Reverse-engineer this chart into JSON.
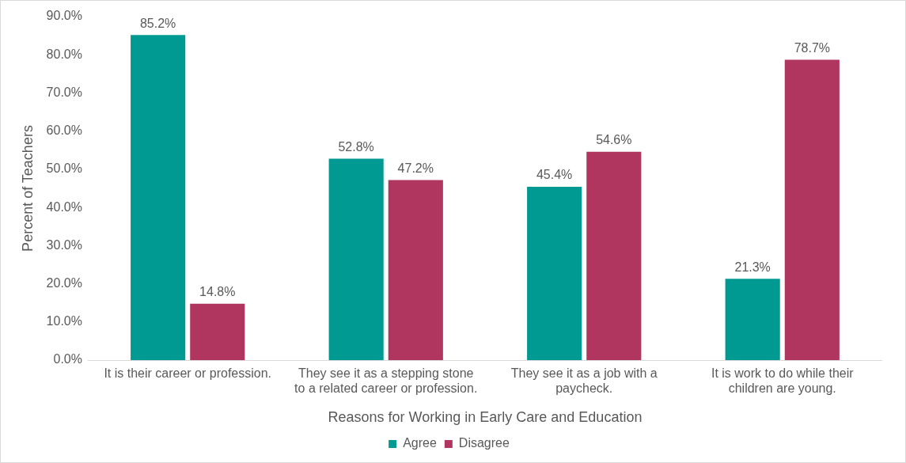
{
  "chart_data": {
    "type": "bar",
    "xlabel": "Reasons for Working in Early Care and Education",
    "ylabel": "Percent of Teachers",
    "categories": [
      "It is their career or profession.",
      "They see it as a stepping stone to a related career or profession.",
      "They see it as a job with a paycheck.",
      "It is work to do while their children are young."
    ],
    "series": [
      {
        "name": "Agree",
        "color": "#009a93",
        "values": [
          85.2,
          52.8,
          45.4,
          21.3
        ],
        "value_labels": [
          "85.2%",
          "52.8%",
          "45.4%",
          "21.3%"
        ]
      },
      {
        "name": "Disagree",
        "color": "#b0365f",
        "values": [
          14.8,
          47.2,
          54.6,
          78.7
        ],
        "value_labels": [
          "14.8%",
          "47.2%",
          "54.6%",
          "78.7%"
        ]
      }
    ],
    "ylim": [
      0,
      90
    ],
    "yticks": [
      {
        "value": 0,
        "label": "0.0%"
      },
      {
        "value": 10,
        "label": "10.0%"
      },
      {
        "value": 20,
        "label": "20.0%"
      },
      {
        "value": 30,
        "label": "30.0%"
      },
      {
        "value": 40,
        "label": "40.0%"
      },
      {
        "value": 50,
        "label": "50.0%"
      },
      {
        "value": 60,
        "label": "60.0%"
      },
      {
        "value": 70,
        "label": "70.0%"
      },
      {
        "value": 80,
        "label": "80.0%"
      },
      {
        "value": 90,
        "label": "90.0%"
      }
    ],
    "grid": false,
    "legend": "bottom"
  }
}
